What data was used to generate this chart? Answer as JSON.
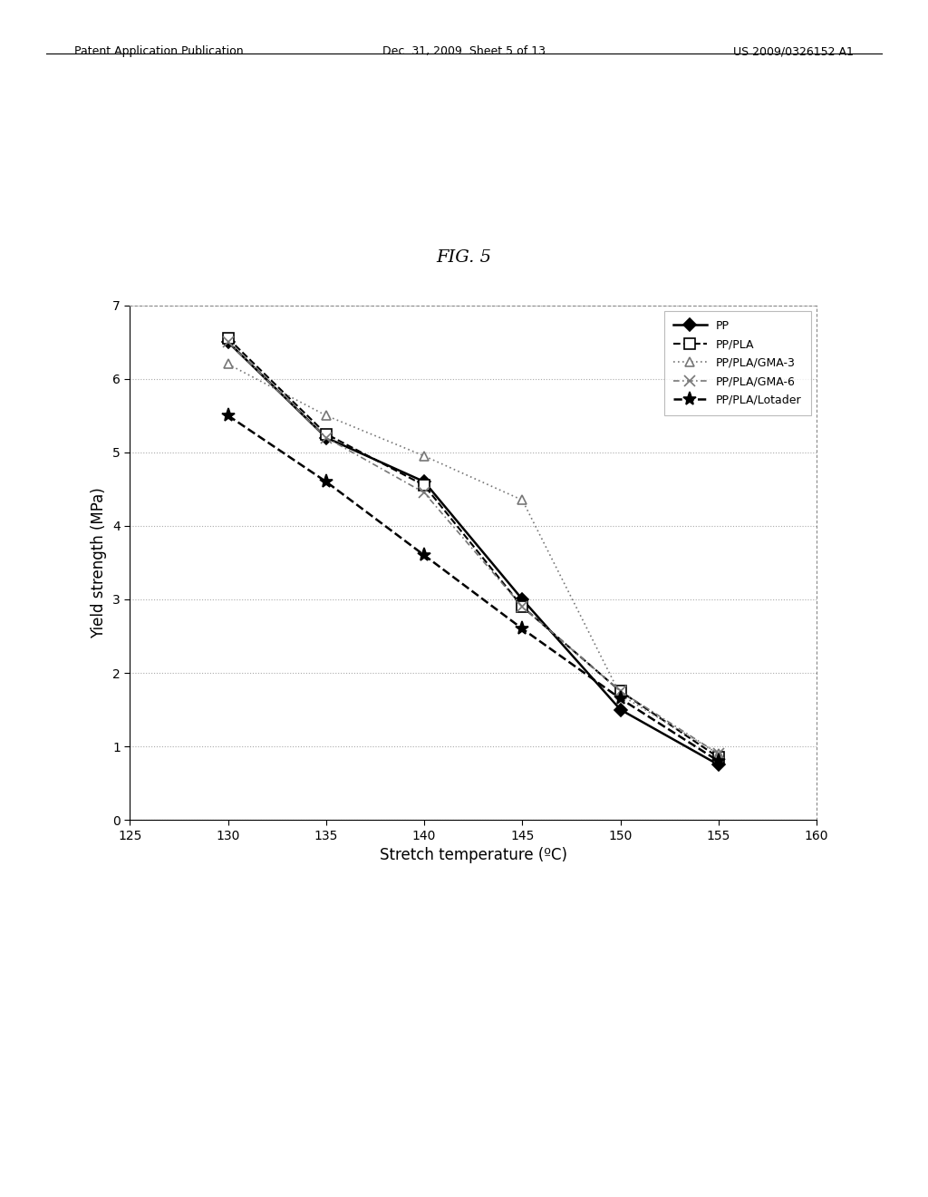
{
  "title": "FIG. 5",
  "xlabel": "Stretch temperature (ºC)",
  "ylabel": "Yield strength (MPa)",
  "xlim": [
    125,
    160
  ],
  "ylim": [
    0,
    7
  ],
  "xticks": [
    125,
    130,
    135,
    140,
    145,
    150,
    155,
    160
  ],
  "yticks": [
    0,
    1,
    2,
    3,
    4,
    5,
    6,
    7
  ],
  "header_left": "Patent Application Publication",
  "header_center": "Dec. 31, 2009  Sheet 5 of 13",
  "header_right": "US 2009/0326152 A1",
  "series": [
    {
      "label": "PP",
      "x": [
        130,
        135,
        140,
        145,
        150,
        155
      ],
      "y": [
        6.5,
        5.2,
        4.6,
        3.0,
        1.5,
        0.75
      ],
      "color": "#000000",
      "linestyle": "-",
      "linewidth": 1.8,
      "marker": "D",
      "markersize": 7,
      "markerfacecolor": "#000000",
      "markeredgecolor": "#000000"
    },
    {
      "label": "PP/PLA",
      "x": [
        130,
        135,
        140,
        145,
        150,
        155
      ],
      "y": [
        6.55,
        5.25,
        4.55,
        2.9,
        1.75,
        0.85
      ],
      "color": "#000000",
      "linestyle": "--",
      "linewidth": 1.5,
      "marker": "s",
      "markersize": 8,
      "markerfacecolor": "#ffffff",
      "markeredgecolor": "#000000"
    },
    {
      "label": "PP/PLA/GMA-3",
      "x": [
        130,
        135,
        140,
        145,
        150,
        155
      ],
      "y": [
        6.2,
        5.5,
        4.95,
        4.35,
        1.7,
        0.9
      ],
      "color": "#777777",
      "linestyle": "dotted",
      "linewidth": 1.2,
      "marker": "^",
      "markersize": 7,
      "markerfacecolor": "#ffffff",
      "markeredgecolor": "#777777"
    },
    {
      "label": "PP/PLA/GMA-6",
      "x": [
        130,
        135,
        140,
        145,
        150,
        155
      ],
      "y": [
        6.5,
        5.2,
        4.45,
        2.9,
        1.75,
        0.9
      ],
      "color": "#777777",
      "linestyle": "dashdot",
      "linewidth": 1.2,
      "marker": "x",
      "markersize": 8,
      "markerfacecolor": "#777777",
      "markeredgecolor": "#777777"
    },
    {
      "label": "PP/PLA/Lotader",
      "x": [
        130,
        135,
        140,
        145,
        150,
        155
      ],
      "y": [
        5.5,
        4.6,
        3.6,
        2.6,
        1.65,
        0.8
      ],
      "color": "#000000",
      "linestyle": "--",
      "linewidth": 1.8,
      "marker": "*",
      "markersize": 11,
      "markerfacecolor": "#000000",
      "markeredgecolor": "#000000"
    }
  ],
  "background_color": "#ffffff"
}
